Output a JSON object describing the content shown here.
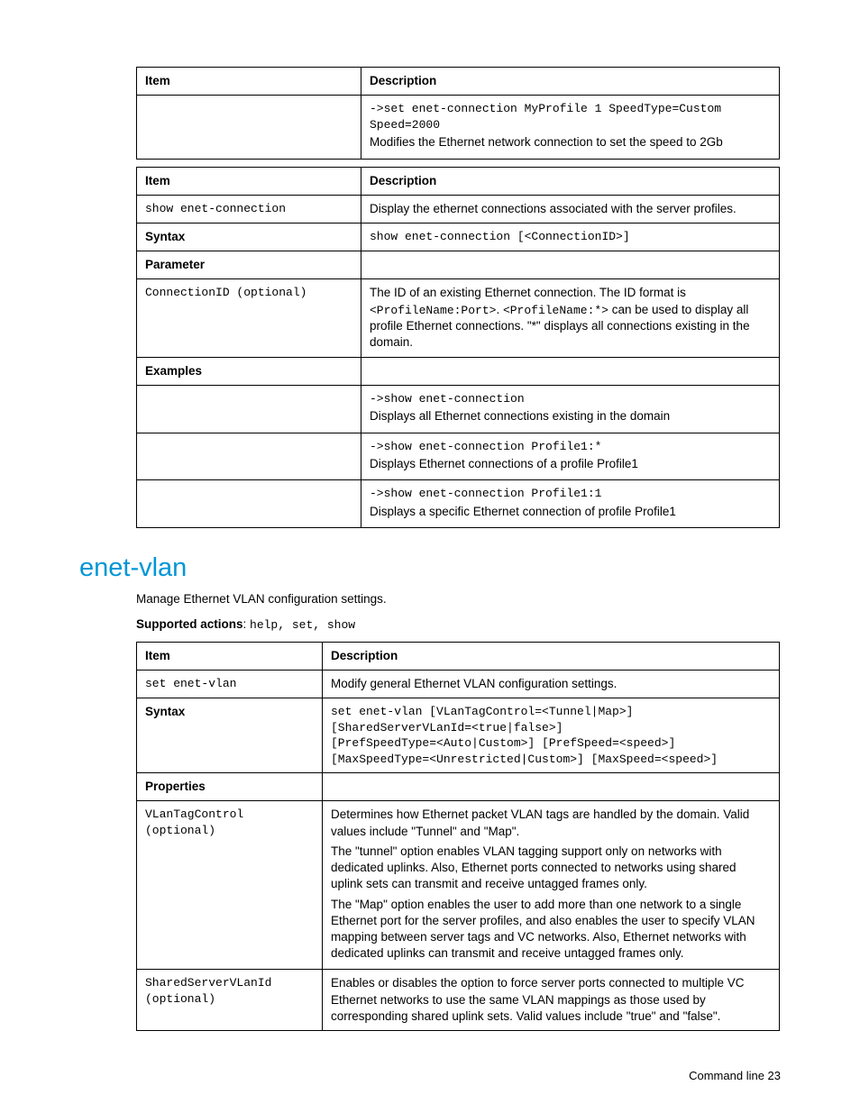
{
  "tbl1": {
    "h_item": "Item",
    "h_desc": "Description",
    "r0_code": "->set enet-connection MyProfile 1 SpeedType=Custom Speed=2000",
    "r0_txt": "Modifies the Ethernet network connection to set the speed to 2Gb"
  },
  "tbl2": {
    "h_item": "Item",
    "h_desc": "Description",
    "r0_item": "show enet-connection",
    "r0_desc": "Display the ethernet connections associated with the server profiles.",
    "r1_item": "Syntax",
    "r1_desc": "show enet-connection [<ConnectionID>]",
    "r2_item": "Parameter",
    "r3_item": "ConnectionID (optional)",
    "r3_desc_a": "The ID of an existing Ethernet connection. The ID format is ",
    "r3_desc_b": "<ProfileName:Port>",
    "r3_desc_c": ". ",
    "r3_desc_d": "<ProfileName:*>",
    "r3_desc_e": " can be used to display all profile Ethernet connections. \"*\" displays all connections existing in the domain.",
    "r4_item": "Examples",
    "r5_code": "->show enet-connection",
    "r5_txt": "Displays all Ethernet connections existing in the domain",
    "r6_code": "->show enet-connection Profile1:*",
    "r6_txt": "Displays Ethernet connections of a profile Profile1",
    "r7_code": "->show enet-connection Profile1:1",
    "r7_txt": "Displays a specific Ethernet connection of profile Profile1"
  },
  "section_title": "enet-vlan",
  "intro": "Manage Ethernet VLAN configuration settings.",
  "supported_actions_label": "Supported actions",
  "supported_actions_val": "help, set, show",
  "tbl3": {
    "h_item": "Item",
    "h_desc": "Description",
    "r0_item": "set enet-vlan",
    "r0_desc": "Modify general Ethernet VLAN configuration settings.",
    "r1_item": "Syntax",
    "r1_desc": "set enet-vlan [VLanTagControl=<Tunnel|Map>]\n[SharedServerVLanId=<true|false>]\n[PrefSpeedType=<Auto|Custom>] [PrefSpeed=<speed>]\n[MaxSpeedType=<Unrestricted|Custom>] [MaxSpeed=<speed>]",
    "r2_item": "Properties",
    "r3_item": "VLanTagControl (optional)",
    "r3_p1": "Determines how Ethernet packet VLAN tags are handled by the domain. Valid values include \"Tunnel\" and \"Map\".",
    "r3_p2": "The \"tunnel\" option enables VLAN tagging support only on networks with dedicated uplinks. Also, Ethernet ports connected to networks using shared uplink sets can transmit and receive untagged frames only.",
    "r3_p3": "The \"Map\" option enables the user to add more than one network to a single Ethernet port for the server profiles, and also enables the user to specify VLAN mapping between server tags and VC networks. Also, Ethernet networks with dedicated uplinks can transmit and receive untagged frames only.",
    "r4_item": "SharedServerVLanId (optional)",
    "r4_desc": "Enables or disables the option to force server ports connected to multiple VC Ethernet networks to use the same VLAN mappings as those used by corresponding shared uplink sets. Valid values include \"true\" and \"false\"."
  },
  "footer": "Command line  23"
}
